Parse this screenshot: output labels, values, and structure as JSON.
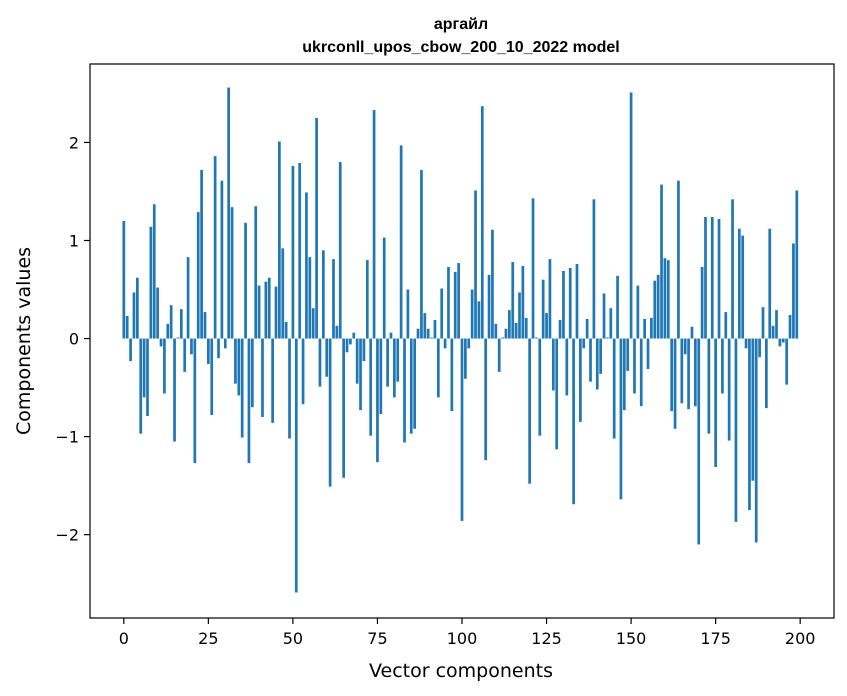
{
  "chart_data": {
    "type": "bar",
    "title": "аргайл",
    "subtitle": "ukrconll_upos_cbow_200_10_2022 model",
    "xlabel": "Vector components",
    "ylabel": "Components values",
    "xlim": [
      -10,
      210
    ],
    "ylim": [
      -2.85,
      2.8
    ],
    "xticks": [
      0,
      25,
      50,
      75,
      100,
      125,
      150,
      175,
      200
    ],
    "yticks": [
      -2,
      -1,
      0,
      1,
      2
    ],
    "ytick_labels": [
      "−2",
      "−1",
      "0",
      "1",
      "2"
    ],
    "grid": false,
    "legend": "none",
    "bar_color": "#1f77b4",
    "x": [
      0,
      1,
      2,
      3,
      4,
      5,
      6,
      7,
      8,
      9,
      10,
      11,
      12,
      13,
      14,
      15,
      16,
      17,
      18,
      19,
      20,
      21,
      22,
      23,
      24,
      25,
      26,
      27,
      28,
      29,
      30,
      31,
      32,
      33,
      34,
      35,
      36,
      37,
      38,
      39,
      40,
      41,
      42,
      43,
      44,
      45,
      46,
      47,
      48,
      49,
      50,
      51,
      52,
      53,
      54,
      55,
      56,
      57,
      58,
      59,
      60,
      61,
      62,
      63,
      64,
      65,
      66,
      67,
      68,
      69,
      70,
      71,
      72,
      73,
      74,
      75,
      76,
      77,
      78,
      79,
      80,
      81,
      82,
      83,
      84,
      85,
      86,
      87,
      88,
      89,
      90,
      91,
      92,
      93,
      94,
      95,
      96,
      97,
      98,
      99,
      100,
      101,
      102,
      103,
      104,
      105,
      106,
      107,
      108,
      109,
      110,
      111,
      112,
      113,
      114,
      115,
      116,
      117,
      118,
      119,
      120,
      121,
      122,
      123,
      124,
      125,
      126,
      127,
      128,
      129,
      130,
      131,
      132,
      133,
      134,
      135,
      136,
      137,
      138,
      139,
      140,
      141,
      142,
      143,
      144,
      145,
      146,
      147,
      148,
      149,
      150,
      151,
      152,
      153,
      154,
      155,
      156,
      157,
      158,
      159,
      160,
      161,
      162,
      163,
      164,
      165,
      166,
      167,
      168,
      169,
      170,
      171,
      172,
      173,
      174,
      175,
      176,
      177,
      178,
      179,
      180,
      181,
      182,
      183,
      184,
      185,
      186,
      187,
      188,
      189,
      190,
      191,
      192,
      193,
      194,
      195,
      196,
      197,
      198,
      199
    ],
    "values": [
      1.2,
      0.23,
      -0.23,
      0.47,
      0.62,
      -0.97,
      -0.6,
      -0.79,
      1.14,
      1.37,
      0.52,
      -0.08,
      -0.56,
      0.15,
      0.34,
      -1.05,
      0.01,
      0.3,
      -0.34,
      0.83,
      -0.16,
      -1.27,
      1.29,
      1.72,
      0.27,
      -0.26,
      -0.78,
      1.86,
      -0.2,
      1.61,
      -0.1,
      2.56,
      1.34,
      -0.46,
      -0.58,
      -1.01,
      1.18,
      -1.27,
      -0.7,
      1.35,
      0.54,
      -0.8,
      0.58,
      0.62,
      -0.86,
      0.53,
      2.01,
      0.92,
      0.17,
      -1.02,
      1.76,
      -2.59,
      1.79,
      -0.67,
      1.49,
      0.83,
      0.31,
      2.25,
      -0.49,
      0.9,
      -0.39,
      -1.51,
      0.81,
      0.13,
      1.8,
      -1.42,
      -0.14,
      -0.06,
      0.06,
      -0.46,
      -0.73,
      -0.23,
      0.8,
      -0.99,
      2.33,
      -1.26,
      -0.77,
      1.03,
      -0.49,
      0.06,
      -0.6,
      -0.44,
      1.97,
      -1.06,
      0.5,
      -0.97,
      -0.92,
      0.1,
      1.72,
      0.26,
      0.1,
      0.01,
      0.19,
      -0.6,
      0.51,
      -0.1,
      0.73,
      -0.74,
      0.68,
      0.77,
      -1.86,
      -0.41,
      -0.1,
      0.5,
      1.51,
      0.38,
      2.37,
      -1.24,
      0.65,
      1.11,
      0.15,
      -0.34,
      0.01,
      0.1,
      0.29,
      0.78,
      0.16,
      0.47,
      0.74,
      0.21,
      -1.48,
      1.43,
      0.01,
      -0.99,
      0.6,
      0.26,
      0.81,
      -0.53,
      -1.13,
      0.19,
      0.69,
      -0.58,
      0.72,
      -1.69,
      0.76,
      -0.85,
      -0.1,
      0.2,
      -0.44,
      1.42,
      -0.52,
      -0.36,
      0.46,
      0.01,
      0.31,
      -1.02,
      0.64,
      -1.64,
      -0.73,
      -0.33,
      2.51,
      -0.56,
      0.54,
      -0.69,
      0.2,
      -0.31,
      0.21,
      0.59,
      0.65,
      1.57,
      0.82,
      0.8,
      -0.74,
      -0.92,
      1.61,
      -0.66,
      -0.16,
      -0.72,
      0.12,
      -0.69,
      -2.1,
      0.73,
      1.24,
      -0.97,
      1.24,
      -1.31,
      1.22,
      -0.56,
      0.27,
      -1.04,
      1.42,
      -1.87,
      1.12,
      1.05,
      -0.1,
      -1.75,
      -1.45,
      -2.08,
      -0.19,
      0.32,
      -0.71,
      1.12,
      0.13,
      0.29,
      -0.08,
      -0.04,
      -0.47,
      0.24,
      0.97,
      1.51
    ]
  }
}
